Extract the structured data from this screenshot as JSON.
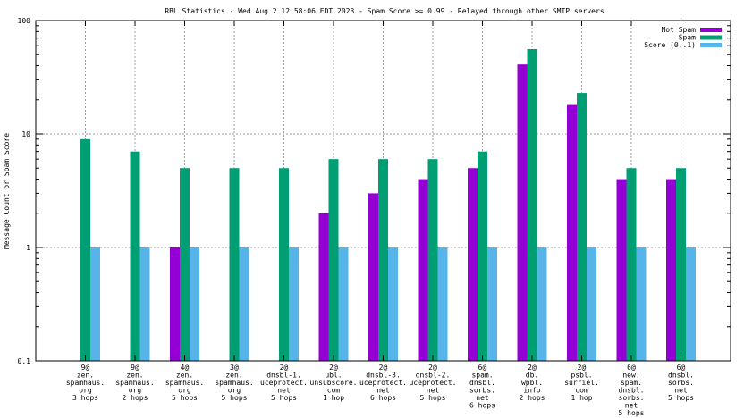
{
  "chart_data": {
    "type": "bar",
    "title": "RBL Statistics - Wed Aug  2 12:58:06 EDT 2023 - Spam Score >= 0.99 - Relayed through other SMTP servers",
    "xlabel": "",
    "ylabel": "Message Count or Spam Score",
    "yscale": "log",
    "ylim": [
      0.1,
      100
    ],
    "yticks": [
      "0.1",
      "1",
      "10",
      "100"
    ],
    "grid": true,
    "legend_position": "top-right",
    "categories": [
      [
        "9@",
        "zen.",
        "spamhaus.",
        "org",
        "3 hops"
      ],
      [
        "9@",
        "zen.",
        "spamhaus.",
        "org",
        "2 hops"
      ],
      [
        "4@",
        "zen.",
        "spamhaus.",
        "org",
        "5 hops"
      ],
      [
        "3@",
        "zen.",
        "spamhaus.",
        "org",
        "5 hops"
      ],
      [
        "2@",
        "dnsbl-1.",
        "uceprotect.",
        "net",
        "5 hops"
      ],
      [
        "2@",
        "ubl.",
        "unsubscore.",
        "com",
        "1 hop"
      ],
      [
        "2@",
        "dnsbl-3.",
        "uceprotect.",
        "net",
        "6 hops"
      ],
      [
        "2@",
        "dnsbl-2.",
        "uceprotect.",
        "net",
        "5 hops"
      ],
      [
        "6@",
        "spam.",
        "dnsbl.",
        "sorbs.",
        "net",
        "6 hops"
      ],
      [
        "2@",
        "db.",
        "wpbl.",
        "info",
        "2 hops"
      ],
      [
        "2@",
        "psbl.",
        "surriel.",
        "com",
        "1 hop"
      ],
      [
        "6@",
        "new.",
        "spam.",
        "dnsbl.",
        "sorbs.",
        "net",
        "5 hops"
      ],
      [
        "6@",
        "dnsbl.",
        "sorbs.",
        "net",
        "5 hops"
      ]
    ],
    "series": [
      {
        "name": "Not Spam",
        "color": "#9400d3",
        "values": [
          0,
          0,
          1,
          0,
          0,
          2,
          3,
          4,
          5,
          41,
          18,
          4,
          4
        ]
      },
      {
        "name": "Spam",
        "color": "#009e73",
        "values": [
          9,
          7,
          5,
          5,
          5,
          6,
          6,
          6,
          7,
          56,
          23,
          5,
          5
        ]
      },
      {
        "name": "Score (0..1)",
        "color": "#56b4e9",
        "values": [
          1,
          1,
          1,
          1,
          1,
          1,
          1,
          1,
          1,
          1,
          1,
          1,
          1
        ]
      }
    ]
  }
}
